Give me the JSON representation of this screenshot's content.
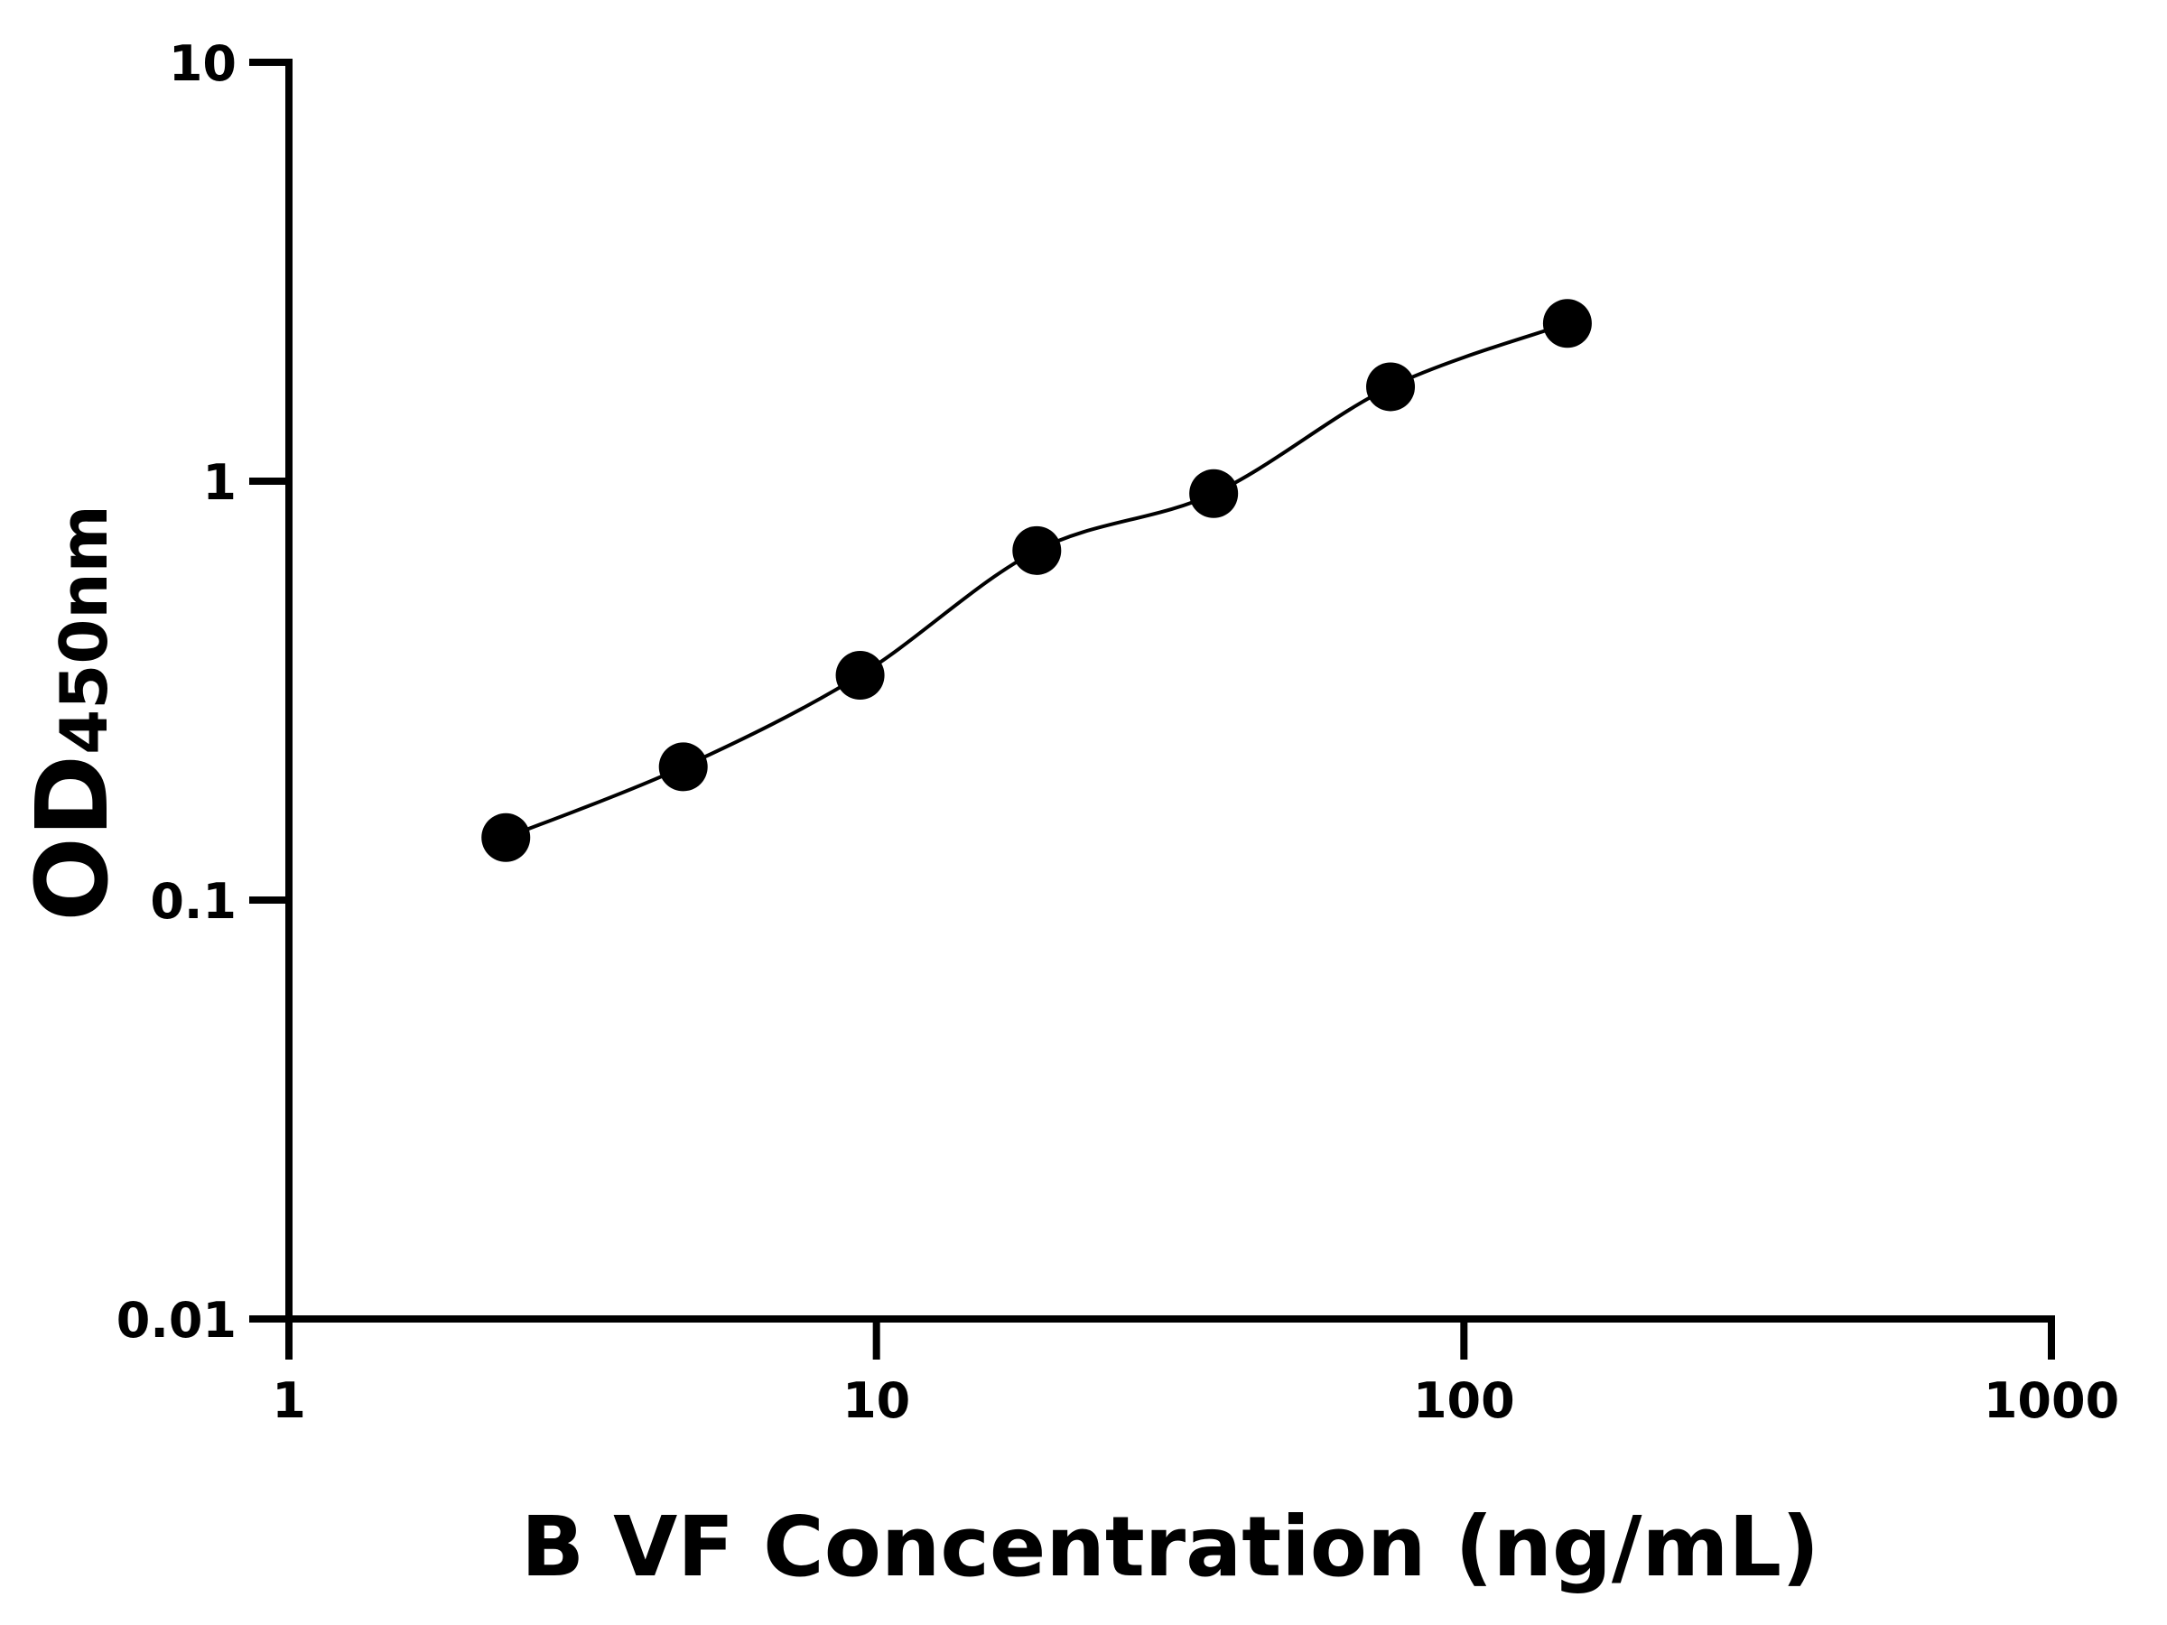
{
  "chart_data": {
    "type": "scatter",
    "title": "",
    "xlabel": "B VF Concentration (ng/mL)",
    "ylabel_main": "OD",
    "ylabel_sub": "450nm",
    "x_scale": "log",
    "y_scale": "log",
    "xlim": [
      1,
      1000
    ],
    "ylim": [
      0.01,
      10
    ],
    "x_ticks": [
      "1",
      "10",
      "100",
      "1000"
    ],
    "y_ticks": [
      "0.01",
      "0.1",
      "1",
      "10"
    ],
    "grid": false,
    "legend": "none",
    "fit_curve": true,
    "series": [
      {
        "x": [
          2.34,
          4.69,
          9.38,
          18.75,
          37.5,
          75,
          150
        ],
        "y": [
          0.141,
          0.208,
          0.344,
          0.683,
          0.934,
          1.68,
          2.38
        ],
        "color": "#000000"
      }
    ]
  }
}
